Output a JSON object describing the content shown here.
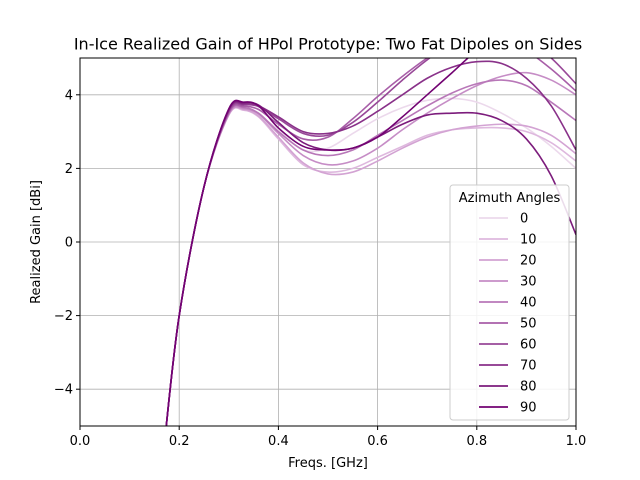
{
  "chart_data": {
    "type": "line",
    "title": "In-Ice Realized Gain of HPol Prototype: Two Fat Dipoles on Sides",
    "xlabel": "Freqs. [GHz]",
    "ylabel": "Realized Gain [dBi]",
    "xlim": [
      0.0,
      1.0
    ],
    "ylim": [
      -5,
      5
    ],
    "xticks": [
      "0.0",
      "0.2",
      "0.4",
      "0.6",
      "0.8",
      "1.0"
    ],
    "yticks": [
      "−4",
      "−2",
      "0",
      "2",
      "4"
    ],
    "grid": true,
    "legend": {
      "title": "Azimuth Angles",
      "placement": "right"
    },
    "x": [
      0.17,
      0.2,
      0.25,
      0.3,
      0.33,
      0.36,
      0.4,
      0.45,
      0.5,
      0.55,
      0.6,
      0.65,
      0.7,
      0.75,
      0.8,
      0.85,
      0.9,
      0.95,
      1.0
    ],
    "series": [
      {
        "name": "0",
        "color": "#ecd9ec",
        "values": [
          -5.5,
          -2.0,
          1.5,
          3.45,
          3.58,
          3.45,
          3.05,
          2.5,
          2.55,
          2.95,
          3.35,
          3.65,
          3.85,
          3.9,
          3.8,
          3.5,
          3.1,
          2.6,
          2.0
        ]
      },
      {
        "name": "10",
        "color": "#deb8de",
        "values": [
          -5.5,
          -2.0,
          1.5,
          3.45,
          3.58,
          3.4,
          2.8,
          2.1,
          1.9,
          2.0,
          2.3,
          2.6,
          2.9,
          3.05,
          3.1,
          3.1,
          3.0,
          2.7,
          2.2
        ]
      },
      {
        "name": "20",
        "color": "#d3a3d3",
        "values": [
          -5.5,
          -2.0,
          1.5,
          3.46,
          3.6,
          3.42,
          2.85,
          2.15,
          1.85,
          1.9,
          2.2,
          2.55,
          2.85,
          3.05,
          3.15,
          3.2,
          3.15,
          2.9,
          2.4
        ]
      },
      {
        "name": "30",
        "color": "#c68dc6",
        "values": [
          -5.5,
          -2.0,
          1.5,
          3.47,
          3.62,
          3.48,
          2.95,
          2.35,
          2.1,
          2.2,
          2.55,
          3.05,
          3.5,
          3.9,
          4.25,
          4.5,
          4.6,
          4.4,
          4.0
        ]
      },
      {
        "name": "40",
        "color": "#b877b8",
        "values": [
          -5.5,
          -2.0,
          1.5,
          3.5,
          3.65,
          3.5,
          3.0,
          2.5,
          2.35,
          2.5,
          2.9,
          3.3,
          3.7,
          4.05,
          4.3,
          4.4,
          4.25,
          3.8,
          3.3
        ]
      },
      {
        "name": "50",
        "color": "#a85ea8",
        "values": [
          -5.5,
          -2.0,
          1.5,
          3.52,
          3.68,
          3.6,
          3.2,
          2.8,
          2.85,
          3.35,
          3.95,
          4.5,
          5.0,
          5.4,
          5.6,
          5.5,
          5.2,
          4.7,
          4.1
        ]
      },
      {
        "name": "60",
        "color": "#984898",
        "values": [
          -5.5,
          -2.0,
          1.5,
          3.55,
          3.72,
          3.68,
          3.35,
          2.95,
          2.9,
          3.25,
          3.8,
          4.4,
          4.95,
          5.4,
          5.7,
          5.75,
          5.5,
          5.0,
          4.3
        ]
      },
      {
        "name": "70",
        "color": "#893189",
        "values": [
          -5.5,
          -2.0,
          1.5,
          3.58,
          3.75,
          3.7,
          3.4,
          3.0,
          2.95,
          3.15,
          3.55,
          4.0,
          4.45,
          4.75,
          4.9,
          4.85,
          4.45,
          3.7,
          2.5
        ]
      },
      {
        "name": "80",
        "color": "#7c1c7c",
        "values": [
          -5.5,
          -2.0,
          1.5,
          3.6,
          3.78,
          3.72,
          3.25,
          2.7,
          2.5,
          2.55,
          2.85,
          3.2,
          3.45,
          3.5,
          3.5,
          3.3,
          2.8,
          1.8,
          0.2
        ]
      },
      {
        "name": "90",
        "color": "#720272",
        "values": [
          -5.5,
          -2.0,
          1.5,
          3.62,
          3.8,
          3.7,
          3.1,
          2.6,
          2.5,
          2.55,
          2.85,
          3.4,
          4.0,
          4.6,
          5.2,
          5.6,
          5.7,
          5.5,
          5.2
        ]
      }
    ]
  }
}
